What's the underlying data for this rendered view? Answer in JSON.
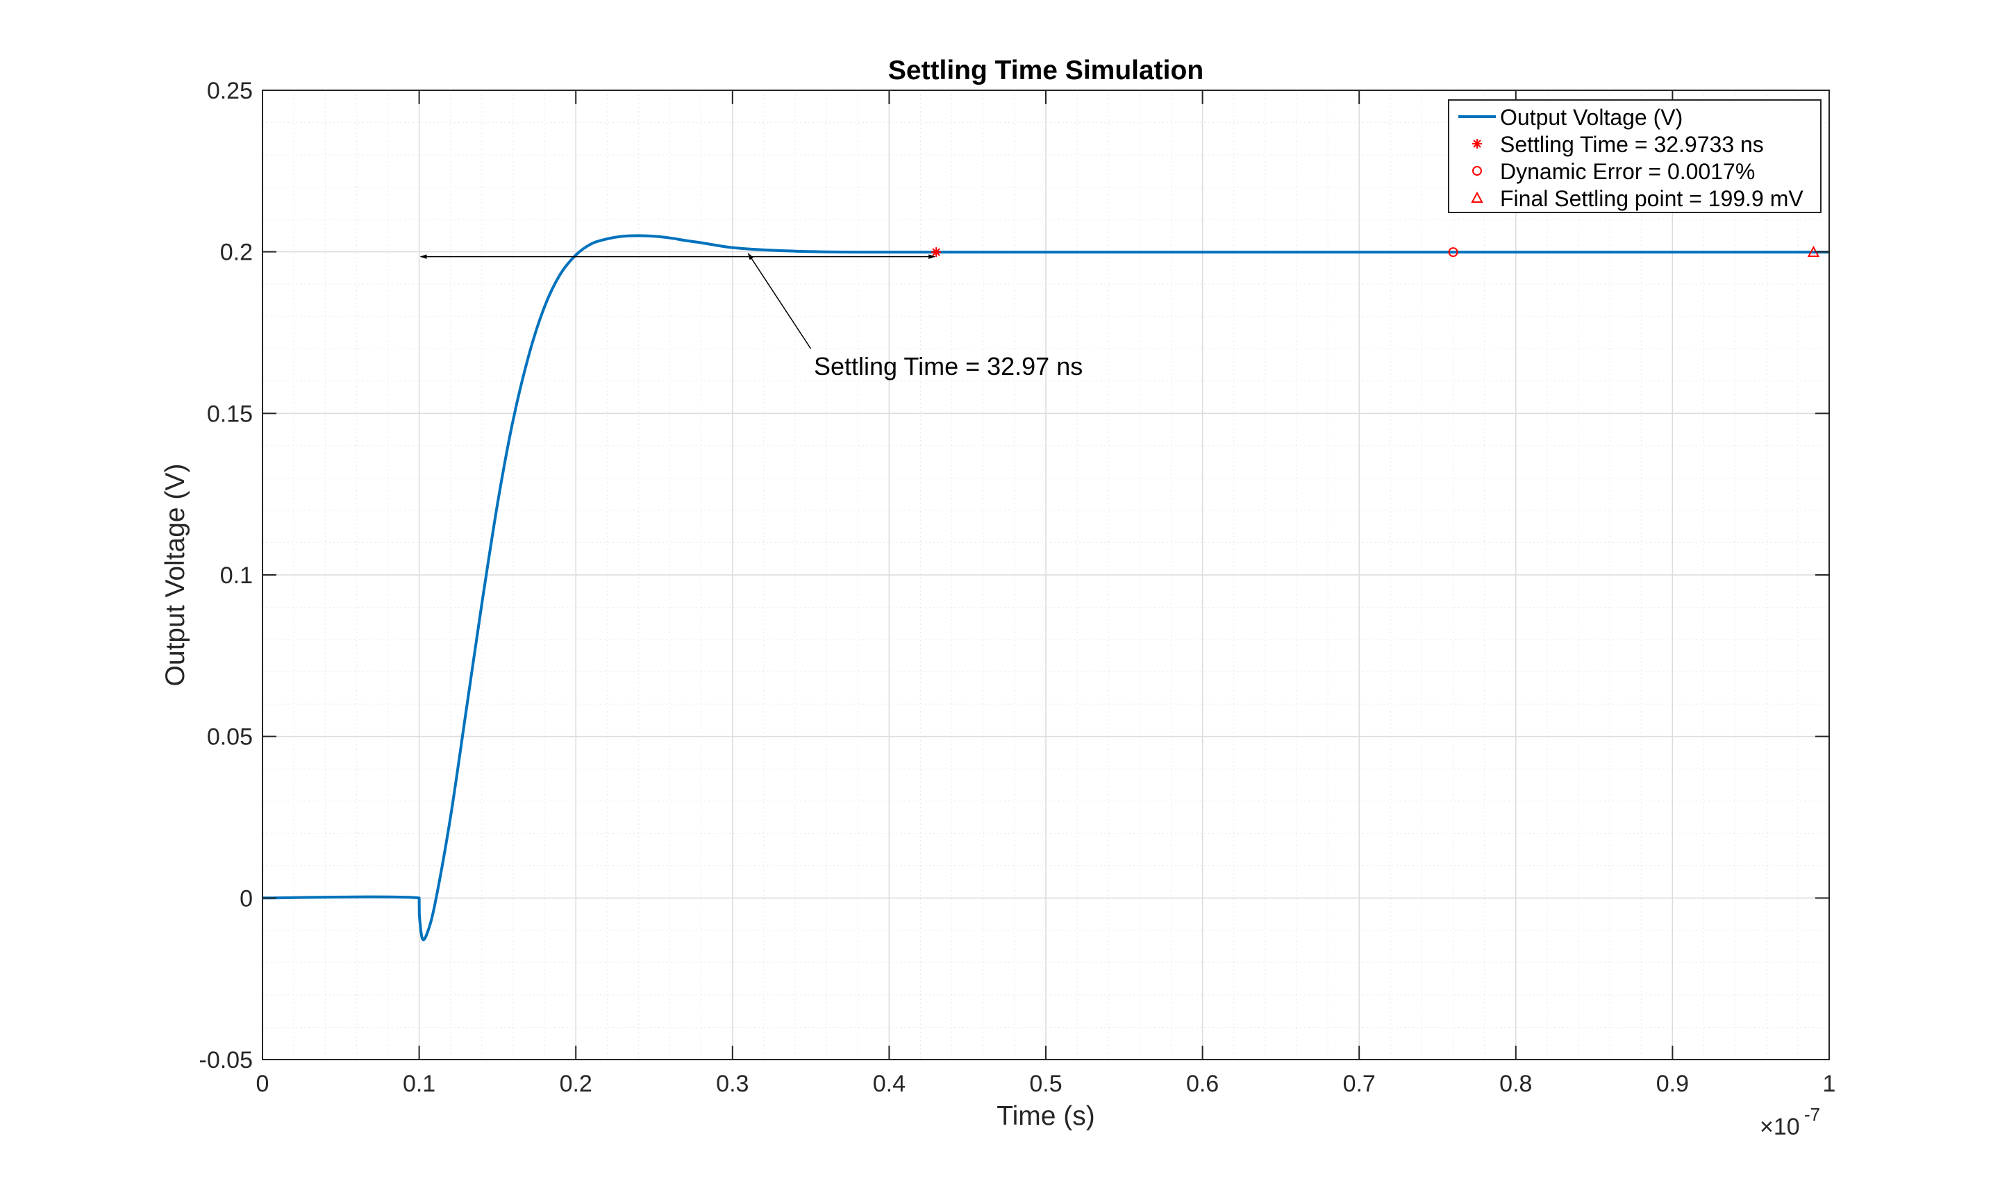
{
  "chart_data": {
    "type": "line",
    "title": "Settling Time Simulation",
    "xlabel": "Time (s)",
    "ylabel": "Output Voltage (V)",
    "xlim": [
      0,
      1e-07
    ],
    "ylim": [
      -0.05,
      0.25
    ],
    "x_exponent": {
      "base": "×10",
      "power": "-7"
    },
    "xticks": [
      0,
      0.1,
      0.2,
      0.3,
      0.4,
      0.5,
      0.6,
      0.7,
      0.8,
      0.9,
      1
    ],
    "xtick_labels": [
      "0",
      "0.1",
      "0.2",
      "0.3",
      "0.4",
      "0.5",
      "0.6",
      "0.7",
      "0.8",
      "0.9",
      "1"
    ],
    "yticks": [
      -0.05,
      0,
      0.05,
      0.1,
      0.15,
      0.2,
      0.25
    ],
    "ytick_labels": [
      "-0.05",
      "0",
      "0.05",
      "0.1",
      "0.15",
      "0.2",
      "0.25"
    ],
    "grid": true,
    "minor_grid": true,
    "legend_position": "top-right",
    "series": [
      {
        "name": "Output Voltage (V)",
        "color": "#0072BD",
        "x": [
          0,
          1e-08,
          1.001e-08,
          1.02e-08,
          1.05e-08,
          1.1e-08,
          1.2e-08,
          1.3e-08,
          1.4e-08,
          1.5e-08,
          1.6e-08,
          1.7e-08,
          1.8e-08,
          1.9e-08,
          2e-08,
          2.1e-08,
          2.2e-08,
          2.3e-08,
          2.4e-08,
          2.5e-08,
          2.6e-08,
          2.7e-08,
          2.8e-08,
          2.9e-08,
          3e-08,
          3.2e-08,
          3.4e-08,
          3.6e-08,
          3.8e-08,
          4e-08,
          4.2e-08,
          4.5e-08,
          5e-08,
          6e-08,
          7e-08,
          8e-08,
          9e-08,
          1e-07
        ],
        "y": [
          0,
          0,
          -0.005,
          -0.0125,
          -0.011,
          -0.002,
          0.025,
          0.058,
          0.091,
          0.122,
          0.148,
          0.168,
          0.183,
          0.193,
          0.199,
          0.2025,
          0.204,
          0.2048,
          0.205,
          0.2048,
          0.2043,
          0.2035,
          0.2028,
          0.202,
          0.2013,
          0.2006,
          0.2002,
          0.2,
          0.1999,
          0.1999,
          0.1999,
          0.1999,
          0.1999,
          0.1999,
          0.1999,
          0.1999,
          0.1999,
          0.1999
        ]
      }
    ],
    "markers": [
      {
        "name": "Settling Time = 32.9733 ns",
        "shape": "star",
        "color": "#FF0000",
        "x": 4.3e-08,
        "y": 0.1999
      },
      {
        "name": "Dynamic Error = 0.0017%",
        "shape": "circle",
        "color": "#FF0000",
        "x": 7.6e-08,
        "y": 0.1999
      },
      {
        "name": "Final Settling point = 199.9 mV",
        "shape": "triangle",
        "color": "#FF0000",
        "x": 9.9e-08,
        "y": 0.1999
      }
    ],
    "annotations": [
      {
        "text": "Settling Time = 32.97 ns",
        "double_arrow": {
          "x1": 1e-08,
          "x2": 4.3e-08,
          "y": 0.1985
        },
        "pointer_arrow": {
          "from": [
            3.5e-08,
            0.17
          ],
          "to": [
            3.1e-08,
            0.1995
          ]
        }
      }
    ]
  }
}
